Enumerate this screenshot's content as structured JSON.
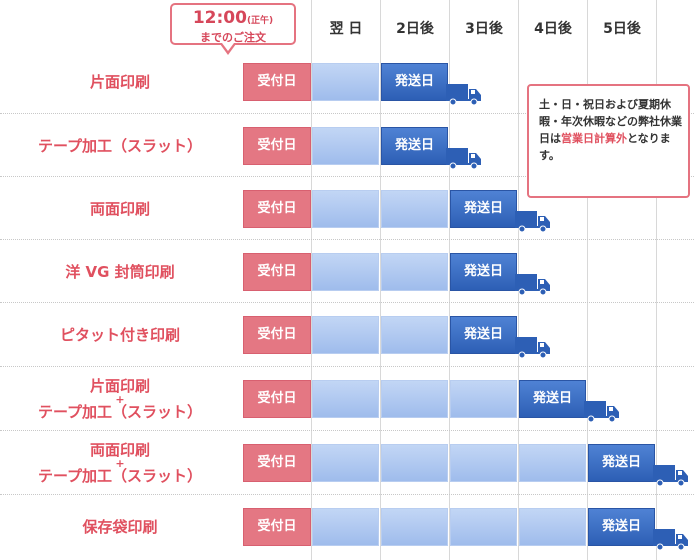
{
  "deadline": {
    "time": "12:00",
    "time_note": "(正午)",
    "text": "までのご注文"
  },
  "days": [
    "翌 日",
    "2日後",
    "3日後",
    "4日後",
    "5日後"
  ],
  "receive_label": "受付日",
  "ship_label": "発送日",
  "note": {
    "part1": "土・日・祝日および夏期休暇・年次休暇などの弊社休業日は",
    "highlight": "営業日計算外",
    "part2": "となります。"
  },
  "rows": [
    {
      "label": [
        "片面印刷"
      ],
      "ship_day": 2
    },
    {
      "label": [
        "テープ加工（スラット）"
      ],
      "ship_day": 2
    },
    {
      "label": [
        "両面印刷"
      ],
      "ship_day": 3
    },
    {
      "label": [
        "洋 VG 封筒印刷"
      ],
      "ship_day": 3
    },
    {
      "label": [
        "ピタット付き印刷"
      ],
      "ship_day": 3
    },
    {
      "label": [
        "片面印刷",
        "+",
        "テープ加工（スラット）"
      ],
      "ship_day": 4
    },
    {
      "label": [
        "両面印刷",
        "+",
        "テープ加工（スラット）"
      ],
      "ship_day": 5
    },
    {
      "label": [
        "保存袋印刷"
      ],
      "ship_day": 5
    }
  ],
  "colors": {
    "receive": "#e47783",
    "ship": "#2d5fb5",
    "wait": "#a9c3ee",
    "accent": "#e0505f"
  },
  "icons": {
    "truck": "truck-icon"
  }
}
